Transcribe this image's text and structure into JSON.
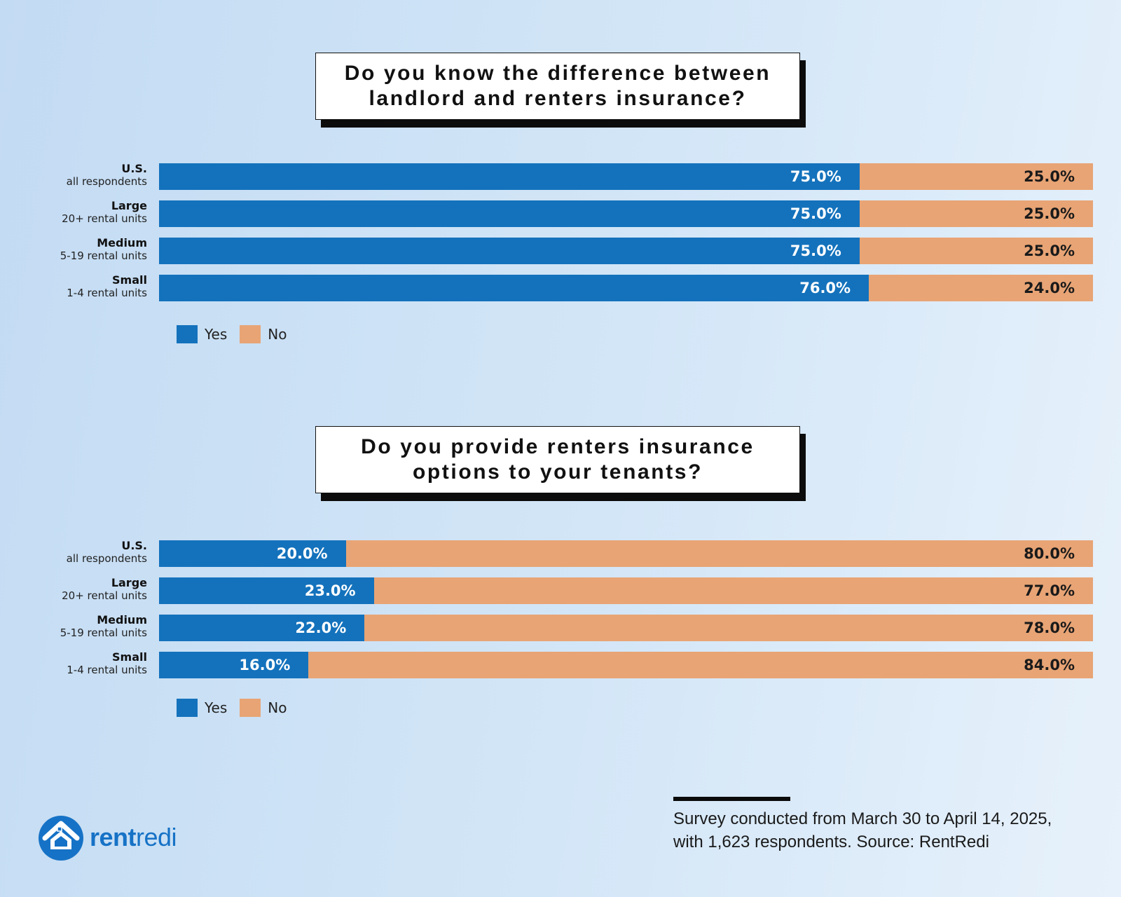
{
  "chart_data": [
    {
      "type": "bar",
      "orientation": "horizontal",
      "stacked": true,
      "title": "Do you know the difference between\nlandlord and renters insurance?",
      "categories": [
        {
          "name": "U.S.",
          "sub": "all respondents"
        },
        {
          "name": "Large",
          "sub": "20+ rental units"
        },
        {
          "name": "Medium",
          "sub": "5-19 rental units"
        },
        {
          "name": "Small",
          "sub": "1-4 rental units"
        }
      ],
      "series": [
        {
          "name": "Yes",
          "color": "#1472bc",
          "values": [
            75.0,
            75.0,
            75.0,
            76.0
          ]
        },
        {
          "name": "No",
          "color": "#e8a475",
          "values": [
            25.0,
            25.0,
            25.0,
            24.0
          ]
        }
      ],
      "value_labels": {
        "Yes": [
          "75.0%",
          "75.0%",
          "75.0%",
          "76.0%"
        ],
        "No": [
          "25.0%",
          "25.0%",
          "25.0%",
          "24.0%"
        ]
      },
      "xlim": [
        0,
        100
      ],
      "grid": false,
      "legend_position": "bottom-left"
    },
    {
      "type": "bar",
      "orientation": "horizontal",
      "stacked": true,
      "title": "Do you provide renters insurance\noptions to your tenants?",
      "categories": [
        {
          "name": "U.S.",
          "sub": "all respondents"
        },
        {
          "name": "Large",
          "sub": "20+ rental units"
        },
        {
          "name": "Medium",
          "sub": "5-19 rental units"
        },
        {
          "name": "Small",
          "sub": "1-4 rental units"
        }
      ],
      "series": [
        {
          "name": "Yes",
          "color": "#1472bc",
          "values": [
            20.0,
            23.0,
            22.0,
            16.0
          ]
        },
        {
          "name": "No",
          "color": "#e8a475",
          "values": [
            80.0,
            77.0,
            78.0,
            84.0
          ]
        }
      ],
      "value_labels": {
        "Yes": [
          "20.0%",
          "23.0%",
          "22.0%",
          "16.0%"
        ],
        "No": [
          "80.0%",
          "77.0%",
          "78.0%",
          "84.0%"
        ]
      },
      "xlim": [
        0,
        100
      ],
      "grid": false,
      "legend_position": "bottom-left"
    }
  ],
  "footnote": {
    "line1": "Survey conducted from March 30 to April 14, 2025,",
    "line2": "with 1,623 respondents. Source: RentRedi"
  },
  "logo": {
    "text_bold": "rent",
    "text_light": "redi",
    "icon": "house-circle-icon",
    "color": "#1672c6"
  }
}
